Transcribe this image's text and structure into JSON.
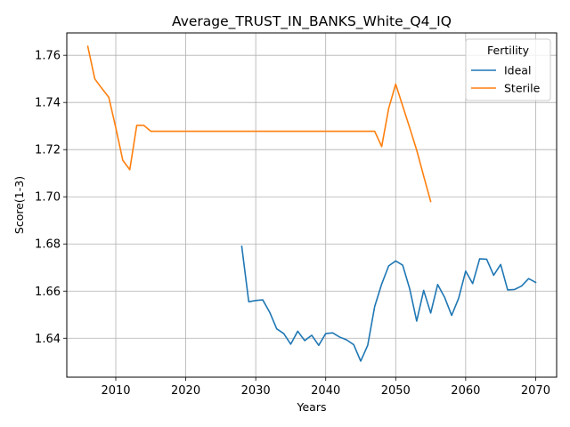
{
  "chart_data": {
    "type": "line",
    "title": "Average_TRUST_IN_BANKS_White_Q4_IQ",
    "xlabel": "Years",
    "ylabel": "Score(1-3)",
    "xlim": [
      2003,
      2073
    ],
    "ylim": [
      1.6235,
      1.7695
    ],
    "xticks": [
      2010,
      2020,
      2030,
      2040,
      2050,
      2060,
      2070
    ],
    "yticks": [
      1.64,
      1.66,
      1.68,
      1.7,
      1.72,
      1.74,
      1.76
    ],
    "ytick_labels": [
      "1.64",
      "1.66",
      "1.68",
      "1.70",
      "1.72",
      "1.74",
      "1.76"
    ],
    "grid": true,
    "legend": {
      "title": "Fertility",
      "placement": "top-right"
    },
    "series": [
      {
        "name": "Ideal",
        "color": "#1f77b4",
        "x": [
          2028,
          2029,
          2030,
          2031,
          2032,
          2033,
          2034,
          2035,
          2036,
          2037,
          2038,
          2039,
          2040,
          2041,
          2042,
          2043,
          2044,
          2045,
          2046,
          2047,
          2048,
          2049,
          2050,
          2051,
          2052,
          2053,
          2054,
          2055,
          2056,
          2057,
          2058,
          2059,
          2060,
          2061,
          2062,
          2063,
          2064,
          2065,
          2066,
          2067,
          2068,
          2069,
          2070
        ],
        "y": [
          1.679,
          1.6555,
          1.656,
          1.6563,
          1.651,
          1.644,
          1.642,
          1.6375,
          1.643,
          1.639,
          1.6413,
          1.637,
          1.642,
          1.6423,
          1.6405,
          1.6393,
          1.6373,
          1.6303,
          1.637,
          1.6535,
          1.663,
          1.6707,
          1.6728,
          1.671,
          1.661,
          1.6473,
          1.6603,
          1.6507,
          1.6628,
          1.6573,
          1.6497,
          1.657,
          1.6685,
          1.6632,
          1.6737,
          1.6735,
          1.6667,
          1.6713,
          1.6605,
          1.6607,
          1.6622,
          1.6653,
          1.6637
        ]
      },
      {
        "name": "Sterile",
        "color": "#ff7f0e",
        "x": [
          2006,
          2007,
          2008,
          2009,
          2010,
          2011,
          2012,
          2013,
          2014,
          2015,
          2016,
          2017,
          2018,
          2019,
          2020,
          2021,
          2022,
          2023,
          2024,
          2025,
          2026,
          2027,
          2028,
          2029,
          2030,
          2031,
          2032,
          2033,
          2034,
          2035,
          2036,
          2037,
          2038,
          2039,
          2040,
          2041,
          2042,
          2043,
          2044,
          2045,
          2046,
          2047,
          2048,
          2049,
          2050,
          2051,
          2052,
          2053,
          2054,
          2055
        ],
        "y": [
          1.7638,
          1.75,
          1.746,
          1.7422,
          1.7293,
          1.7155,
          1.7115,
          1.7303,
          1.7303,
          1.7278,
          1.7278,
          1.7278,
          1.7278,
          1.7278,
          1.7278,
          1.7278,
          1.7278,
          1.7278,
          1.7278,
          1.7278,
          1.7278,
          1.7278,
          1.7278,
          1.7278,
          1.7278,
          1.7278,
          1.7278,
          1.7278,
          1.7278,
          1.7278,
          1.7278,
          1.7278,
          1.7278,
          1.7278,
          1.7278,
          1.7278,
          1.7278,
          1.7278,
          1.7278,
          1.7278,
          1.7278,
          1.7278,
          1.7213,
          1.7375,
          1.7478,
          1.7385,
          1.7293,
          1.7198,
          1.7088,
          1.698
        ]
      }
    ]
  }
}
